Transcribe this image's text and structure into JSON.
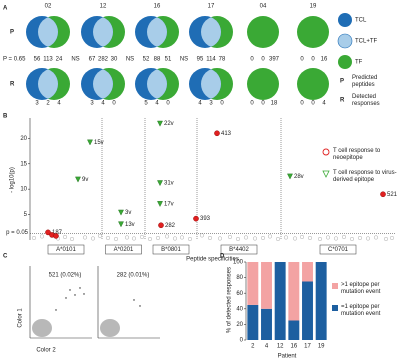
{
  "chart_data": [
    {
      "type": "venn",
      "panel": "A",
      "columns": [
        "02",
        "12",
        "16",
        "17",
        "04",
        "19"
      ],
      "rows": [
        {
          "label": "P",
          "values": [
            [
              56,
              113,
              24
            ],
            [
              67,
              282,
              30
            ],
            [
              52,
              88,
              51
            ],
            [
              95,
              114,
              78
            ],
            [
              0,
              0,
              397
            ],
            [
              0,
              0,
              16
            ]
          ]
        },
        {
          "label": "R",
          "values": [
            [
              3,
              2,
              4
            ],
            [
              3,
              4,
              0
            ],
            [
              5,
              4,
              0
            ],
            [
              4,
              3,
              0
            ],
            [
              0,
              0,
              18
            ],
            [
              0,
              0,
              4
            ]
          ]
        }
      ],
      "stat": "P = 0.65",
      "comparisons": [
        "NS",
        "NS",
        "NS"
      ],
      "series": [
        {
          "name": "TCL",
          "color": "#1f6db5"
        },
        {
          "name": "TCL+TF",
          "color": "#a8cde9"
        },
        {
          "name": "TF",
          "color": "#3aa935"
        }
      ],
      "row_legend": [
        {
          "label": "P",
          "text": "Predicted peptides"
        },
        {
          "label": "R",
          "text": "Detected responses"
        }
      ]
    },
    {
      "type": "scatter",
      "panel": "B",
      "ylabel": "- log10(p)",
      "xlabel": "Peptide specificities",
      "xlim": [
        0,
        365
      ],
      "ylim": [
        0,
        24
      ],
      "yticks": [
        5,
        10,
        15,
        20
      ],
      "threshold": {
        "value": 1.3,
        "label": "p = 0.05"
      },
      "boundaries": [
        72,
        115,
        167,
        251
      ],
      "groups": [
        "A*0101",
        "A*0201",
        "B*0801",
        "B*4402",
        "C*0701"
      ],
      "series": [
        {
          "color": "#aaaaaa",
          "marker": "ring",
          "x": [
            4,
            12,
            28,
            35,
            42,
            55,
            63,
            70,
            78,
            86,
            97,
            104,
            112,
            120,
            128,
            137,
            145,
            152,
            160,
            172,
            180,
            190,
            200,
            208,
            216,
            225,
            233,
            240,
            248,
            256,
            265,
            272,
            280,
            290,
            298,
            306,
            314,
            322,
            330,
            338,
            346,
            356,
            362
          ],
          "values": [
            0.4,
            0.7,
            0.3,
            0.6,
            0.2,
            0.5,
            0.3,
            0.8,
            0.4,
            0.2,
            0.5,
            0.3,
            0.6,
            0.2,
            0.4,
            0.7,
            0.3,
            0.5,
            0.2,
            0.9,
            0.4,
            0.3,
            0.6,
            0.2,
            0.5,
            0.3,
            0.4,
            0.7,
            0.2,
            0.5,
            0.3,
            0.6,
            0.4,
            0.2,
            0.5,
            0.3,
            0.6,
            0.2,
            0.4,
            0.3,
            0.5,
            0.2,
            0.4
          ]
        },
        {
          "name": "T cell response to neoepitope",
          "color": "#e02020",
          "marker": "circle",
          "x": [
            18,
            22,
            26,
            131,
            166,
            187,
            353
          ],
          "values": [
            1.5,
            1.0,
            0.8,
            2.9,
            4.2,
            21,
            9.0
          ],
          "labels": [
            "187",
            null,
            null,
            "282",
            "393",
            "413",
            "521"
          ]
        },
        {
          "name": "T cell response to virus-derived epitope",
          "color": "#3aa935",
          "marker": "triangle",
          "x": [
            60,
            48,
            91,
            91,
            130,
            130,
            130,
            260
          ],
          "values": [
            19.2,
            11.9,
            5.4,
            3.1,
            22.9,
            11.2,
            7.1,
            12.5
          ],
          "labels": [
            "15v",
            "9v",
            "3v",
            "13v",
            "22v",
            "31v",
            "17v",
            "28v"
          ]
        }
      ]
    },
    {
      "type": "flow",
      "panel": "C",
      "xlabel": "Color 2",
      "ylabel": "Color 1",
      "gates": [
        "521 (0.02%)",
        "282 (0.01%)"
      ]
    },
    {
      "type": "bar",
      "panel": "D",
      "stacked": true,
      "ylabel": "% of detected responses",
      "xlabel": "Patient",
      "categories": [
        "2",
        "4",
        "12",
        "16",
        "17",
        "19"
      ],
      "ylim": [
        0,
        100
      ],
      "yticks": [
        0,
        20,
        40,
        60,
        80,
        100
      ],
      "series": [
        {
          "name": "=1 epitope per mutation event",
          "color": "#1d5fa0",
          "values": [
            45,
            40,
            100,
            25,
            75,
            100
          ]
        },
        {
          "name": ">1 epitope per mutation event",
          "color": "#f3a3a3",
          "values": [
            55,
            60,
            0,
            75,
            25,
            0
          ]
        }
      ]
    }
  ]
}
